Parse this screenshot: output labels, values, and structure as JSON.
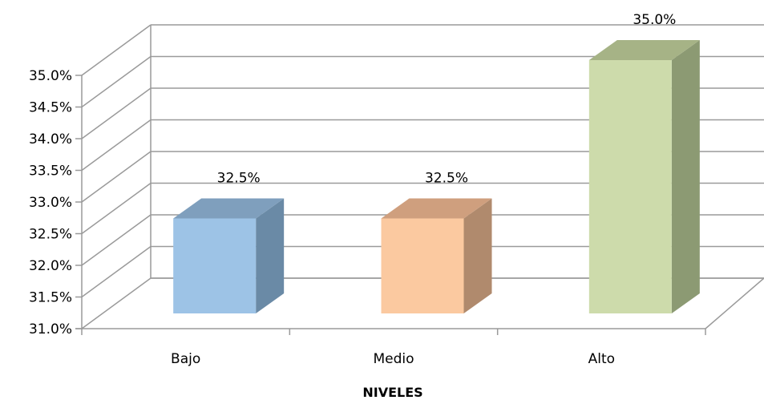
{
  "chart_data": {
    "type": "bar",
    "title": "",
    "xlabel": "NIVELES",
    "ylabel": "",
    "categories": [
      "Bajo",
      "Medio",
      "Alto"
    ],
    "values": [
      32.5,
      32.5,
      35.0
    ],
    "data_labels": [
      "32.5%",
      "32.5%",
      "35.0%"
    ],
    "ylim": [
      31.0,
      35.0
    ],
    "yticks": [
      31.0,
      31.5,
      32.0,
      32.5,
      33.0,
      33.5,
      34.0,
      34.5,
      35.0
    ],
    "ytick_labels": [
      "31.0%",
      "31.5%",
      "32.0%",
      "32.5%",
      "33.0%",
      "33.5%",
      "34.0%",
      "34.5%",
      "35.0%"
    ],
    "grid": true,
    "style": "3d-column",
    "bar_colors": [
      {
        "front": "#9dc3e6",
        "side": "#6a8aa6",
        "top": "#7f9fbd"
      },
      {
        "front": "#fbc9a0",
        "side": "#b08a6d",
        "top": "#cf9f7e"
      },
      {
        "front": "#cddbab",
        "side": "#8c9a73",
        "top": "#a6b386"
      }
    ],
    "grid_color": "#9a9a9a"
  }
}
